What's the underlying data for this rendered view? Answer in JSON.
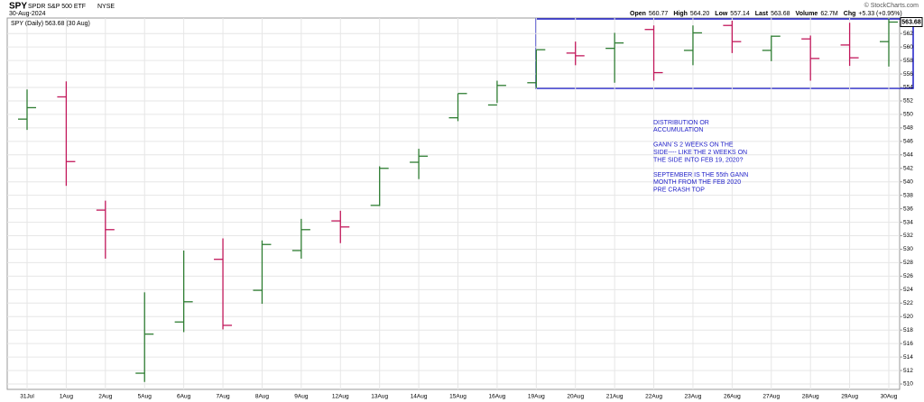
{
  "header": {
    "symbol": "SPY",
    "name": "SPDR S&P 500 ETF",
    "exchange": "NYSE",
    "date": "30-Aug-2024",
    "copyright": "© StockCharts.com",
    "stats": [
      {
        "label": "Open",
        "value": "560.77"
      },
      {
        "label": "High",
        "value": "564.20"
      },
      {
        "label": "Low",
        "value": "557.14"
      },
      {
        "label": "Last",
        "value": "563.68"
      },
      {
        "label": "Volume",
        "value": "62.7M"
      },
      {
        "label": "Chg",
        "value": "+5.33 (+0.95%)"
      }
    ]
  },
  "chart_data": {
    "type": "ohlc",
    "legend": "SPY (Daily) 563.68 (30 Aug)",
    "last_label": "563.68",
    "categories": [
      "31Jul",
      "1Aug",
      "2Aug",
      "5Aug",
      "6Aug",
      "7Aug",
      "8Aug",
      "9Aug",
      "12Aug",
      "13Aug",
      "14Aug",
      "15Aug",
      "16Aug",
      "19Aug",
      "20Aug",
      "21Aug",
      "22Aug",
      "23Aug",
      "26Aug",
      "27Aug",
      "28Aug",
      "29Aug",
      "30Aug"
    ],
    "open": [
      549.3,
      552.6,
      535.8,
      511.6,
      519.2,
      528.5,
      523.9,
      529.8,
      534.2,
      536.5,
      542.9,
      549.5,
      551.4,
      554.7,
      559.1,
      559.8,
      562.6,
      559.5,
      563.2,
      559.5,
      561.2,
      560.3,
      560.8
    ],
    "high": [
      553.7,
      554.9,
      537.2,
      523.6,
      529.8,
      531.6,
      531.3,
      534.5,
      535.7,
      542.3,
      544.9,
      553.1,
      555.0,
      559.6,
      560.8,
      562.1,
      563.2,
      563.2,
      563.9,
      561.7,
      561.7,
      563.6,
      564.2
    ],
    "low": [
      547.7,
      539.4,
      528.6,
      510.3,
      517.7,
      518.1,
      521.9,
      528.6,
      530.9,
      536.4,
      540.4,
      549.0,
      551.7,
      553.9,
      557.3,
      554.7,
      555.0,
      557.3,
      559.1,
      557.9,
      555.0,
      557.2,
      557.1
    ],
    "close": [
      551.0,
      543.0,
      532.9,
      517.4,
      522.2,
      518.7,
      530.7,
      532.9,
      533.3,
      542.0,
      543.8,
      553.1,
      554.3,
      559.6,
      558.7,
      560.6,
      556.2,
      562.1,
      560.8,
      561.6,
      558.3,
      558.4,
      563.7
    ],
    "up_color": "#2e7d32",
    "down_color": "#c2185b",
    "ylim": [
      509.2,
      564.3
    ],
    "yticks": [
      510,
      512,
      514,
      516,
      518,
      520,
      522,
      524,
      526,
      528,
      530,
      532,
      534,
      536,
      538,
      540,
      542,
      544,
      546,
      548,
      550,
      552,
      554,
      556,
      558,
      560,
      562
    ],
    "grid": true,
    "annotation": [
      [
        "DISTRIBUTION OR",
        "ACCUMULATION"
      ],
      [
        "GANN`S 2 WEEKS ON THE",
        "SIDE---- LIKE THE 2 WEEKS ON",
        "THE SIDE INTO FEB 19, 2020?"
      ],
      [
        "SEPTEMBER IS THE 55th GANN",
        "MONTH FROM THE FEB 2020",
        "PRE CRASH TOP"
      ]
    ]
  }
}
